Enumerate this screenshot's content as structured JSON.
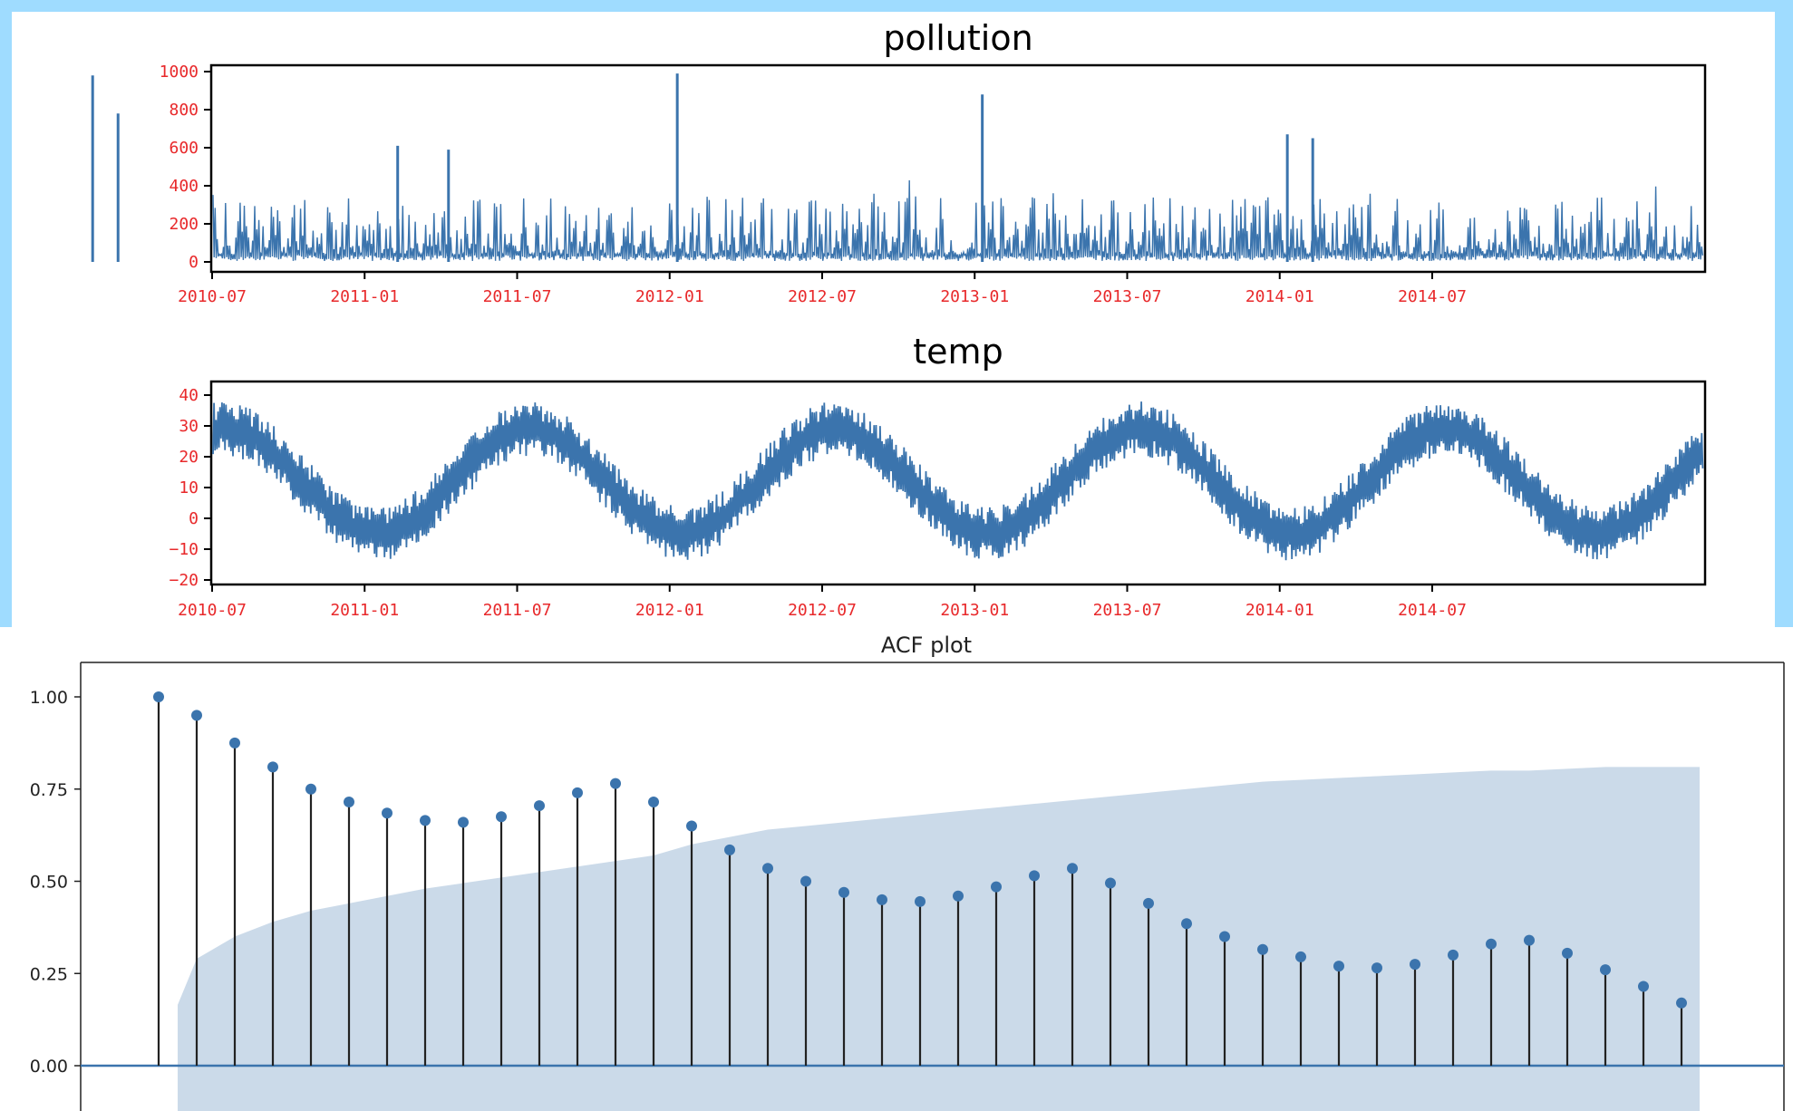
{
  "chart_data": [
    {
      "type": "line",
      "title": "pollution",
      "x_range": [
        "2010-01",
        "2014-12"
      ],
      "xticks": [
        "2010-07",
        "2011-01",
        "2011-07",
        "2012-01",
        "2012-07",
        "2013-01",
        "2013-07",
        "2014-01",
        "2014-07"
      ],
      "yticks": [
        "0",
        "200",
        "400",
        "600",
        "800",
        "1000"
      ],
      "ylim": [
        0,
        1000
      ],
      "color": "#3b74ad",
      "tick_color": "#e8292b",
      "baseline_approx": 80,
      "peaks": [
        {
          "x": "2010-02",
          "y": 980
        },
        {
          "x": "2010-03",
          "y": 780
        },
        {
          "x": "2011-02",
          "y": 610
        },
        {
          "x": "2011-04",
          "y": 590
        },
        {
          "x": "2012-01",
          "y": 990
        },
        {
          "x": "2013-01",
          "y": 880
        },
        {
          "x": "2014-01",
          "y": 670
        },
        {
          "x": "2014-02",
          "y": 650
        }
      ]
    },
    {
      "type": "line",
      "title": "temp",
      "x_range": [
        "2010-01",
        "2014-12"
      ],
      "xticks": [
        "2010-07",
        "2011-01",
        "2011-07",
        "2012-01",
        "2012-07",
        "2013-01",
        "2013-07",
        "2014-01",
        "2014-07"
      ],
      "yticks": [
        "40",
        "30",
        "20",
        "10",
        "0",
        "−10",
        "−20"
      ],
      "ylim": [
        -20,
        40
      ],
      "color": "#3b74ad",
      "tick_color": "#e8292b",
      "seasonal_mean": 12,
      "seasonal_amplitude": 17,
      "seasonal_peaks": [
        "2010-07",
        "2011-07",
        "2012-07",
        "2013-07",
        "2014-07"
      ],
      "seasonal_troughs": [
        "2011-01",
        "2012-01",
        "2013-01",
        "2014-01"
      ]
    },
    {
      "type": "scatter",
      "title": "ACF plot",
      "lags": [
        0,
        1,
        2,
        3,
        4,
        5,
        6,
        7,
        8,
        9,
        10,
        11,
        12,
        13,
        14,
        15,
        16,
        17,
        18,
        19,
        20,
        21,
        22,
        23,
        24,
        25,
        26,
        27,
        28,
        29,
        30,
        31,
        32,
        33,
        34,
        35,
        36,
        37,
        38,
        39,
        40
      ],
      "values": [
        1.0,
        0.95,
        0.875,
        0.81,
        0.75,
        0.715,
        0.685,
        0.665,
        0.66,
        0.675,
        0.705,
        0.74,
        0.765,
        0.715,
        0.65,
        0.585,
        0.535,
        0.5,
        0.47,
        0.45,
        0.445,
        0.46,
        0.485,
        0.515,
        0.535,
        0.495,
        0.44,
        0.385,
        0.35,
        0.315,
        0.295,
        0.27,
        0.265,
        0.275,
        0.3,
        0.33,
        0.34,
        0.305,
        0.26,
        0.215,
        0.17
      ],
      "confidence_upper": [
        0.165,
        0.29,
        0.35,
        0.39,
        0.42,
        0.44,
        0.46,
        0.48,
        0.495,
        0.51,
        0.525,
        0.54,
        0.555,
        0.57,
        0.6,
        0.62,
        0.64,
        0.65,
        0.66,
        0.67,
        0.68,
        0.69,
        0.7,
        0.71,
        0.72,
        0.73,
        0.74,
        0.75,
        0.76,
        0.77,
        0.775,
        0.78,
        0.785,
        0.79,
        0.795,
        0.8,
        0.8,
        0.805,
        0.81,
        0.81,
        0.81
      ],
      "yticks": [
        "1.00",
        "0.75",
        "0.50",
        "0.25",
        "0.00"
      ],
      "marker_color": "#3b74ad",
      "stem_color": "#222222",
      "band_color": "#c8d8e8",
      "baseline_color": "#3b74ad"
    }
  ]
}
